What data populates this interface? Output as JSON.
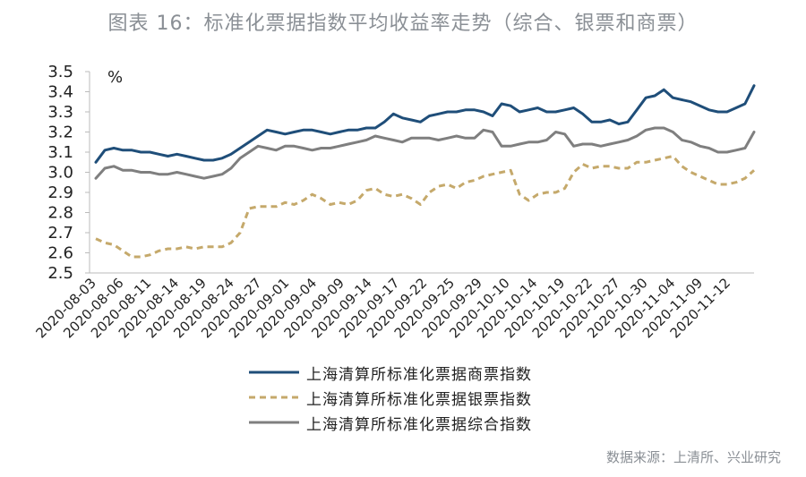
{
  "title": "图表 16：标准化票据指数平均收益率走势（综合、银票和商票）",
  "source": "数据来源：上清所、兴业研究",
  "chart_data": {
    "type": "line",
    "unit_label": "%",
    "ylim": [
      2.5,
      3.5
    ],
    "yticks": [
      "2.5",
      "2.6",
      "2.7",
      "2.8",
      "2.9",
      "3.0",
      "3.1",
      "3.2",
      "3.3",
      "3.4",
      "3.5"
    ],
    "x_tick_labels": [
      "2020-08-03",
      "2020-08-06",
      "2020-08-11",
      "2020-08-14",
      "2020-08-19",
      "2020-08-24",
      "2020-08-27",
      "2020-09-01",
      "2020-09-04",
      "2020-09-09",
      "2020-09-14",
      "2020-09-17",
      "2020-09-22",
      "2020-09-25",
      "2020-09-29",
      "2020-10-10",
      "2020-10-14",
      "2020-10-19",
      "2020-10-22",
      "2020-10-27",
      "2020-10-30",
      "2020-11-04",
      "2020-11-09",
      "2020-11-12"
    ],
    "legend_position": "bottom",
    "series": [
      {
        "name": "上海清算所标准化票据商票指数",
        "color": "#1f4e79",
        "style": "solid",
        "values": [
          3.05,
          3.11,
          3.12,
          3.11,
          3.11,
          3.1,
          3.1,
          3.09,
          3.08,
          3.09,
          3.08,
          3.07,
          3.06,
          3.06,
          3.07,
          3.09,
          3.12,
          3.15,
          3.18,
          3.21,
          3.2,
          3.19,
          3.2,
          3.21,
          3.21,
          3.2,
          3.19,
          3.2,
          3.21,
          3.21,
          3.22,
          3.22,
          3.25,
          3.29,
          3.27,
          3.26,
          3.25,
          3.28,
          3.29,
          3.3,
          3.3,
          3.31,
          3.31,
          3.3,
          3.28,
          3.34,
          3.33,
          3.3,
          3.31,
          3.32,
          3.3,
          3.3,
          3.31,
          3.32,
          3.29,
          3.25,
          3.25,
          3.26,
          3.24,
          3.25,
          3.31,
          3.37,
          3.38,
          3.41,
          3.37,
          3.36,
          3.35,
          3.33,
          3.31,
          3.3,
          3.3,
          3.32,
          3.34,
          3.43
        ]
      },
      {
        "name": "上海清算所标准化票据银票指数",
        "color": "#c5a96b",
        "style": "dashed",
        "values": [
          2.67,
          2.65,
          2.64,
          2.61,
          2.58,
          2.58,
          2.59,
          2.61,
          2.62,
          2.62,
          2.63,
          2.62,
          2.63,
          2.63,
          2.63,
          2.65,
          2.7,
          2.82,
          2.83,
          2.83,
          2.83,
          2.85,
          2.84,
          2.86,
          2.89,
          2.87,
          2.84,
          2.85,
          2.84,
          2.86,
          2.91,
          2.92,
          2.89,
          2.88,
          2.89,
          2.87,
          2.84,
          2.9,
          2.93,
          2.94,
          2.92,
          2.95,
          2.96,
          2.98,
          2.99,
          3.0,
          3.01,
          2.89,
          2.86,
          2.89,
          2.9,
          2.9,
          2.92,
          3.0,
          3.04,
          3.02,
          3.03,
          3.03,
          3.02,
          3.02,
          3.05,
          3.05,
          3.06,
          3.07,
          3.08,
          3.03,
          3.0,
          2.98,
          2.96,
          2.94,
          2.94,
          2.95,
          2.97,
          3.01
        ]
      },
      {
        "name": "上海清算所标准化票据综合指数",
        "color": "#7f7f7f",
        "style": "solid",
        "values": [
          2.97,
          3.02,
          3.03,
          3.01,
          3.01,
          3.0,
          3.0,
          2.99,
          2.99,
          3.0,
          2.99,
          2.98,
          2.97,
          2.98,
          2.99,
          3.02,
          3.07,
          3.1,
          3.13,
          3.12,
          3.11,
          3.13,
          3.13,
          3.12,
          3.11,
          3.12,
          3.12,
          3.13,
          3.14,
          3.15,
          3.16,
          3.18,
          3.17,
          3.16,
          3.15,
          3.17,
          3.17,
          3.17,
          3.16,
          3.17,
          3.18,
          3.17,
          3.17,
          3.21,
          3.2,
          3.13,
          3.13,
          3.14,
          3.15,
          3.15,
          3.16,
          3.2,
          3.19,
          3.13,
          3.14,
          3.14,
          3.13,
          3.14,
          3.15,
          3.16,
          3.18,
          3.21,
          3.22,
          3.22,
          3.2,
          3.16,
          3.15,
          3.13,
          3.12,
          3.1,
          3.1,
          3.11,
          3.12,
          3.2
        ]
      }
    ]
  }
}
